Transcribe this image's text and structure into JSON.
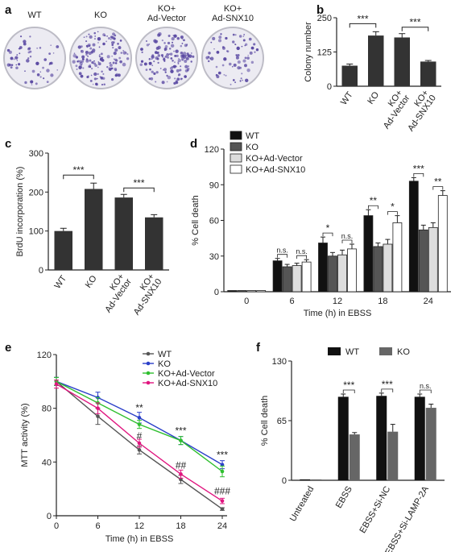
{
  "panel_labels": {
    "a": "a",
    "b": "b",
    "c": "c",
    "d": "d",
    "e": "e",
    "f": "f"
  },
  "panel_a": {
    "dishes": [
      "WT",
      "KO",
      "KO+\nAd-Vector",
      "KO+\nAd-SNX10"
    ],
    "colors": {
      "dish_bg": "#ecebf2",
      "colony": "#5b4aa3",
      "rim": "#bdbcc6"
    }
  },
  "chart_data": [
    {
      "id": "b",
      "type": "bar",
      "categories": [
        "WT",
        "KO",
        "KO+\nAd-Vector",
        "KO+\nAd-SNX10"
      ],
      "values": [
        75,
        185,
        178,
        90
      ],
      "errors": [
        6,
        14,
        14,
        4
      ],
      "ylabel": "Colony number",
      "ylim": [
        0,
        250
      ],
      "yticks": [
        0,
        125,
        250
      ],
      "colors": [
        "#333333",
        "#333333",
        "#333333",
        "#333333"
      ],
      "significance": [
        {
          "from": 0,
          "to": 1,
          "label": "***"
        },
        {
          "from": 2,
          "to": 3,
          "label": "***"
        }
      ]
    },
    {
      "id": "c",
      "type": "bar",
      "categories": [
        "WT",
        "KO",
        "KO+\nAd-Vector",
        "KO+\nAd-SNX10"
      ],
      "values": [
        100,
        208,
        186,
        135
      ],
      "errors": [
        7,
        15,
        8,
        7
      ],
      "ylabel": "BrdU incorporation (%)",
      "ylim": [
        0,
        300
      ],
      "yticks": [
        0,
        100,
        200,
        300
      ],
      "colors": [
        "#333333",
        "#333333",
        "#333333",
        "#333333"
      ],
      "significance": [
        {
          "from": 0,
          "to": 1,
          "label": "***"
        },
        {
          "from": 2,
          "to": 3,
          "label": "***"
        }
      ]
    },
    {
      "id": "d",
      "type": "bar",
      "categories": [
        "0",
        "6",
        "12",
        "18",
        "24"
      ],
      "series": [
        {
          "name": "WT",
          "values": [
            1,
            26,
            41,
            64,
            93
          ],
          "errors": [
            0.5,
            2,
            5,
            5,
            3
          ]
        },
        {
          "name": "KO",
          "values": [
            1,
            21,
            30,
            38,
            52
          ],
          "errors": [
            0.5,
            2,
            3,
            3,
            4
          ]
        },
        {
          "name": "KO+Ad-Vector",
          "values": [
            1,
            22,
            31,
            40,
            54
          ],
          "errors": [
            0.5,
            2,
            4,
            4,
            4
          ]
        },
        {
          "name": "KO+Ad-SNX10",
          "values": [
            1,
            25,
            36,
            58,
            81
          ],
          "errors": [
            0.5,
            2,
            4,
            6,
            4
          ]
        }
      ],
      "colors": [
        "#111111",
        "#555555",
        "#dddddd",
        "#ffffff"
      ],
      "xlabel": "Time (h) in EBSS",
      "ylabel": "% Cell death",
      "ylim": [
        0,
        120
      ],
      "yticks": [
        0,
        30,
        60,
        90,
        120
      ],
      "significance": [
        {
          "group": 1,
          "left": "n.s.",
          "right": "n.s."
        },
        {
          "group": 2,
          "left": "*",
          "right": "n.s."
        },
        {
          "group": 3,
          "left": "**",
          "right": "*"
        },
        {
          "group": 4,
          "left": "***",
          "right": "**"
        }
      ],
      "legend": "top-left"
    },
    {
      "id": "e",
      "type": "line",
      "x": [
        0,
        6,
        12,
        18,
        24
      ],
      "series": [
        {
          "name": "WT",
          "values": [
            100,
            74,
            49,
            27,
            5
          ],
          "errors": [
            3,
            6,
            3,
            3,
            1
          ],
          "color": "#555555"
        },
        {
          "name": "KO",
          "values": [
            100,
            88,
            73,
            56,
            38
          ],
          "errors": [
            3,
            4,
            4,
            3,
            3
          ],
          "color": "#2b3fc9"
        },
        {
          "name": "KO+Ad-Vector",
          "values": [
            100,
            84,
            68,
            56,
            33
          ],
          "errors": [
            3,
            4,
            3,
            3,
            4
          ],
          "color": "#2fbf2f"
        },
        {
          "name": "KO+Ad-SNX10",
          "values": [
            98,
            80,
            54,
            31,
            11
          ],
          "errors": [
            3,
            4,
            3,
            3,
            2
          ],
          "color": "#e0157f"
        }
      ],
      "xlabel": "Time (h) in EBSS",
      "ylabel": "MTT activity (%)",
      "xlim": [
        0,
        24
      ],
      "ylim": [
        0,
        120
      ],
      "xticks": [
        0,
        6,
        12,
        18,
        24
      ],
      "yticks": [
        0,
        40,
        80,
        120
      ],
      "annotations": [
        {
          "x": 12,
          "y": 78,
          "label": "**"
        },
        {
          "x": 18,
          "y": 61,
          "label": "***"
        },
        {
          "x": 24,
          "y": 43,
          "label": "***"
        },
        {
          "x": 12,
          "y": 57,
          "label": "#"
        },
        {
          "x": 18,
          "y": 35,
          "label": "##"
        },
        {
          "x": 24,
          "y": 16,
          "label": "###"
        }
      ],
      "legend": "top-right"
    },
    {
      "id": "f",
      "type": "bar",
      "categories": [
        "Untreated",
        "EBSS",
        "EBSS+Si-NC",
        "EBSS+Si-LAMP-2A"
      ],
      "series": [
        {
          "name": "WT",
          "values": [
            1,
            91,
            92,
            91
          ],
          "errors": [
            0.3,
            3,
            3,
            3
          ]
        },
        {
          "name": "KO",
          "values": [
            1,
            50,
            53,
            79
          ],
          "errors": [
            0.3,
            2,
            8,
            4
          ]
        }
      ],
      "colors": [
        "#111111",
        "#666666"
      ],
      "ylabel": "% Cell death",
      "ylim": [
        0,
        130
      ],
      "yticks": [
        0,
        65,
        130
      ],
      "significance": [
        {
          "group": 1,
          "label": "***"
        },
        {
          "group": 2,
          "label": "***"
        },
        {
          "group": 3,
          "label": "n.s."
        }
      ],
      "legend": "top"
    }
  ]
}
